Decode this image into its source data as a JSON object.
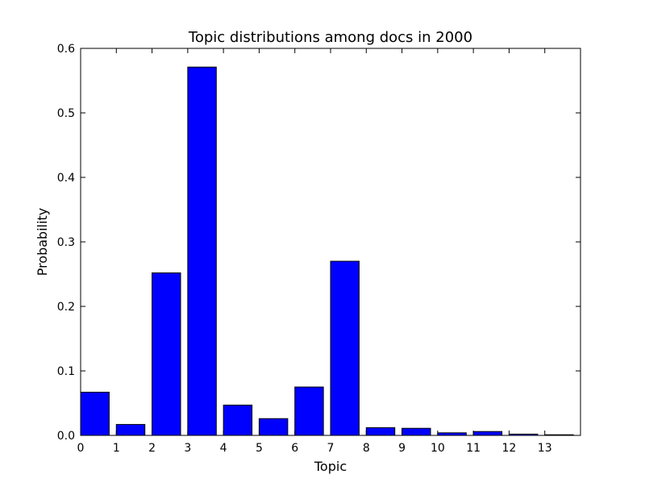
{
  "chart_data": {
    "type": "bar",
    "title": "Topic distributions among docs in 2000",
    "xlabel": "Topic",
    "ylabel": "Probability",
    "categories": [
      "0",
      "1",
      "2",
      "3",
      "4",
      "5",
      "6",
      "7",
      "8",
      "9",
      "10",
      "11",
      "12",
      "13"
    ],
    "values": [
      0.067,
      0.017,
      0.252,
      0.571,
      0.047,
      0.026,
      0.075,
      0.27,
      0.012,
      0.011,
      0.004,
      0.006,
      0.002,
      0.001
    ],
    "xlim": [
      0,
      14
    ],
    "ylim": [
      0,
      0.6
    ],
    "y_ticks": [
      "0.0",
      "0.1",
      "0.2",
      "0.3",
      "0.4",
      "0.5",
      "0.6"
    ],
    "x_ticks": [
      "0",
      "1",
      "2",
      "3",
      "4",
      "5",
      "6",
      "7",
      "8",
      "9",
      "10",
      "11",
      "12",
      "13"
    ],
    "bar_color": "#0000ff",
    "edge_color": "#000000",
    "grid": false
  }
}
